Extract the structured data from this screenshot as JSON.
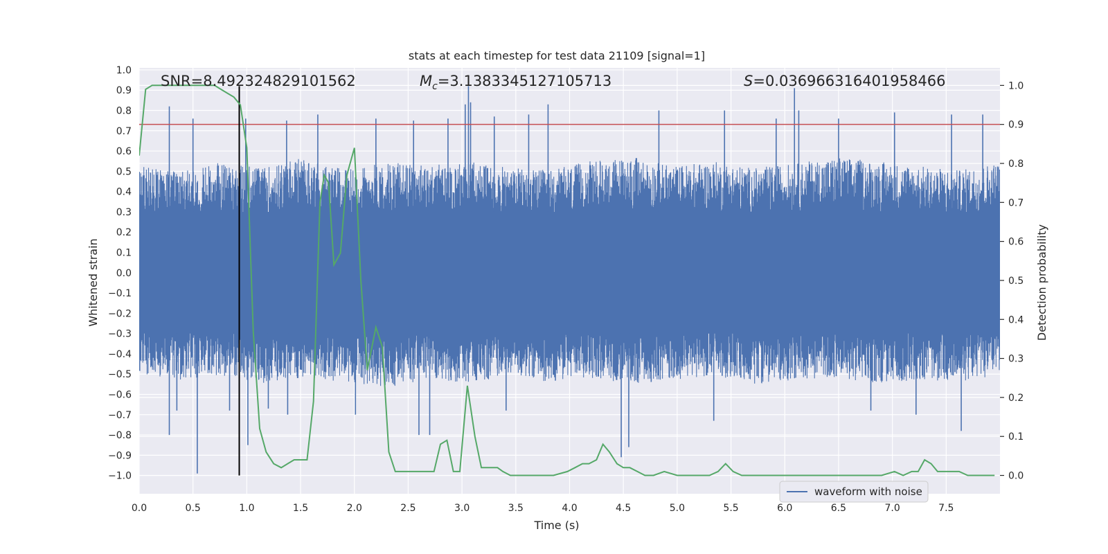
{
  "chart_data": {
    "type": "line",
    "title": "stats at each timestep for test data 21109 [signal=1]",
    "xlabel": "Time (s)",
    "ylabel": "Whitened strain",
    "y2label": "Detection probability",
    "xlim": [
      0.0,
      8.0
    ],
    "ylim": [
      -1.09,
      1.01
    ],
    "y2lim": [
      -0.047,
      1.045
    ],
    "xticks": [
      0.0,
      0.5,
      1.0,
      1.5,
      2.0,
      2.5,
      3.0,
      3.5,
      4.0,
      4.5,
      5.0,
      5.5,
      6.0,
      6.5,
      7.0,
      7.5
    ],
    "yticks": [
      1.0,
      0.9,
      0.8,
      0.7,
      0.6,
      0.5,
      0.4,
      0.3,
      0.2,
      0.1,
      0.0,
      -0.1,
      -0.2,
      -0.3,
      -0.4,
      -0.5,
      -0.6,
      -0.7,
      -0.8,
      -0.9,
      -1.0
    ],
    "y2ticks": [
      1.0,
      0.9,
      0.8,
      0.7,
      0.6,
      0.5,
      0.4,
      0.3,
      0.2,
      0.1,
      0.0
    ],
    "grid": true,
    "legend": {
      "position": "bottom-right",
      "entries": [
        "waveform with noise"
      ]
    },
    "annotations": {
      "snr": "SNR=8.492324829101562",
      "mc_label": "M",
      "mc_sub": "c",
      "mc_value": "=3.1383345127105713",
      "s_label": "S",
      "s_value": "=0.036966316401958466"
    },
    "threshold": {
      "axis": "right",
      "value": 0.9,
      "color": "#c44e52"
    },
    "marker_time": 0.93,
    "colors": {
      "waveform": "#4c72b0",
      "probability": "#55a868",
      "marker": "#000000",
      "background": "#eaeaf2",
      "grid": "#ffffff"
    },
    "waveform": {
      "name": "waveform with noise",
      "note_style": "dense noise trace",
      "envelope_upper": [
        0.48,
        0.45,
        0.5,
        0.47,
        0.52,
        0.46,
        0.5,
        0.48,
        0.5,
        0.47,
        0.46,
        0.5,
        0.52,
        0.48,
        0.5,
        0.47,
        0.49,
        0.52,
        0.5,
        0.48,
        0.46,
        0.5
      ],
      "envelope_lower": [
        -0.45,
        -0.48,
        -0.46,
        -0.5,
        -0.47,
        -0.49,
        -0.52,
        -0.48,
        -0.5,
        -0.46,
        -0.49,
        -0.47,
        -0.5,
        -0.48,
        -0.46,
        -0.5,
        -0.48,
        -0.47,
        -0.5,
        -0.48,
        -0.49,
        -0.46
      ],
      "spikes": [
        {
          "x": 0.28,
          "y": 0.82
        },
        {
          "x": 0.28,
          "y": -0.8
        },
        {
          "x": 0.35,
          "y": -0.68
        },
        {
          "x": 0.54,
          "y": -0.99
        },
        {
          "x": 0.5,
          "y": 0.76
        },
        {
          "x": 0.84,
          "y": -0.68
        },
        {
          "x": 0.99,
          "y": 0.76
        },
        {
          "x": 1.01,
          "y": -0.85
        },
        {
          "x": 1.2,
          "y": -0.67
        },
        {
          "x": 1.37,
          "y": 0.75
        },
        {
          "x": 1.38,
          "y": -0.7
        },
        {
          "x": 1.66,
          "y": 0.78
        },
        {
          "x": 2.01,
          "y": -0.7
        },
        {
          "x": 2.2,
          "y": 0.76
        },
        {
          "x": 2.55,
          "y": 0.75
        },
        {
          "x": 2.6,
          "y": -0.8
        },
        {
          "x": 2.7,
          "y": -0.8
        },
        {
          "x": 2.87,
          "y": 0.76
        },
        {
          "x": 3.03,
          "y": 0.83
        },
        {
          "x": 3.06,
          "y": 0.92
        },
        {
          "x": 3.08,
          "y": 0.84
        },
        {
          "x": 3.3,
          "y": 0.77
        },
        {
          "x": 3.41,
          "y": -0.68
        },
        {
          "x": 3.62,
          "y": 0.78
        },
        {
          "x": 3.8,
          "y": 0.83
        },
        {
          "x": 4.48,
          "y": -0.91
        },
        {
          "x": 4.55,
          "y": -0.86
        },
        {
          "x": 4.83,
          "y": 0.8
        },
        {
          "x": 5.34,
          "y": -0.73
        },
        {
          "x": 5.44,
          "y": 0.8
        },
        {
          "x": 5.92,
          "y": 0.76
        },
        {
          "x": 6.09,
          "y": 0.91
        },
        {
          "x": 6.13,
          "y": 0.8
        },
        {
          "x": 6.5,
          "y": 0.76
        },
        {
          "x": 6.8,
          "y": -0.68
        },
        {
          "x": 7.02,
          "y": 0.79
        },
        {
          "x": 7.22,
          "y": -0.7
        },
        {
          "x": 7.55,
          "y": 0.78
        },
        {
          "x": 7.64,
          "y": -0.78
        },
        {
          "x": 7.84,
          "y": 0.78
        }
      ]
    },
    "probability": {
      "name": "Detection probability",
      "x": [
        0.0,
        0.06,
        0.12,
        0.2,
        0.3,
        0.4,
        0.5,
        0.6,
        0.7,
        0.76,
        0.82,
        0.88,
        0.94,
        1.0,
        1.06,
        1.12,
        1.18,
        1.25,
        1.32,
        1.38,
        1.44,
        1.5,
        1.56,
        1.62,
        1.68,
        1.72,
        1.76,
        1.81,
        1.87,
        1.93,
        2.0,
        2.06,
        2.12,
        2.2,
        2.26,
        2.32,
        2.38,
        2.44,
        2.5,
        2.56,
        2.62,
        2.68,
        2.74,
        2.8,
        2.86,
        2.92,
        2.98,
        3.05,
        3.12,
        3.18,
        3.26,
        3.33,
        3.38,
        3.45,
        3.55,
        3.7,
        3.85,
        3.98,
        4.05,
        4.12,
        4.18,
        4.25,
        4.31,
        4.37,
        4.44,
        4.5,
        4.56,
        4.63,
        4.7,
        4.78,
        4.88,
        5.0,
        5.15,
        5.3,
        5.38,
        5.45,
        5.52,
        5.6,
        5.75,
        6.0,
        6.25,
        6.5,
        6.75,
        6.9,
        7.02,
        7.1,
        7.18,
        7.24,
        7.3,
        7.36,
        7.42,
        7.5,
        7.57,
        7.62,
        7.7,
        7.8,
        7.95
      ],
      "y": [
        0.82,
        0.99,
        1.0,
        1.0,
        1.0,
        1.0,
        1.0,
        1.0,
        1.0,
        0.99,
        0.98,
        0.97,
        0.95,
        0.84,
        0.37,
        0.12,
        0.06,
        0.03,
        0.02,
        0.03,
        0.04,
        0.04,
        0.04,
        0.19,
        0.7,
        0.77,
        0.75,
        0.54,
        0.57,
        0.77,
        0.84,
        0.5,
        0.27,
        0.38,
        0.33,
        0.06,
        0.01,
        0.01,
        0.01,
        0.01,
        0.01,
        0.01,
        0.01,
        0.08,
        0.09,
        0.01,
        0.01,
        0.23,
        0.1,
        0.02,
        0.02,
        0.02,
        0.01,
        0.0,
        0.0,
        0.0,
        0.0,
        0.01,
        0.02,
        0.03,
        0.03,
        0.04,
        0.08,
        0.06,
        0.03,
        0.02,
        0.02,
        0.01,
        0.0,
        0.0,
        0.01,
        0.0,
        0.0,
        0.0,
        0.01,
        0.03,
        0.01,
        0.0,
        0.0,
        0.0,
        0.0,
        0.0,
        0.0,
        0.0,
        0.01,
        0.0,
        0.01,
        0.01,
        0.04,
        0.03,
        0.01,
        0.01,
        0.01,
        0.01,
        0.0,
        0.0,
        0.0
      ]
    }
  }
}
